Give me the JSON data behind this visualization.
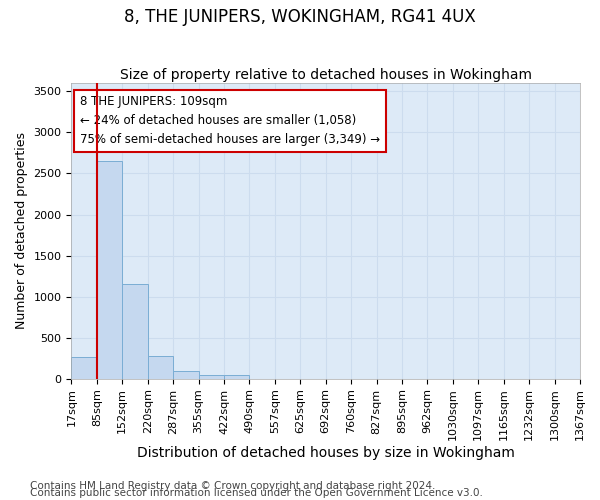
{
  "title": "8, THE JUNIPERS, WOKINGHAM, RG41 4UX",
  "subtitle": "Size of property relative to detached houses in Wokingham",
  "xlabel": "Distribution of detached houses by size in Wokingham",
  "ylabel": "Number of detached properties",
  "footnote1": "Contains HM Land Registry data © Crown copyright and database right 2024.",
  "footnote2": "Contains public sector information licensed under the Open Government Licence v3.0.",
  "bin_labels": [
    "17sqm",
    "85sqm",
    "152sqm",
    "220sqm",
    "287sqm",
    "355sqm",
    "422sqm",
    "490sqm",
    "557sqm",
    "625sqm",
    "692sqm",
    "760sqm",
    "827sqm",
    "895sqm",
    "962sqm",
    "1030sqm",
    "1097sqm",
    "1165sqm",
    "1232sqm",
    "1300sqm",
    "1367sqm"
  ],
  "bar_heights": [
    270,
    2650,
    1150,
    280,
    90,
    50,
    50,
    0,
    0,
    0,
    0,
    0,
    0,
    0,
    0,
    0,
    0,
    0,
    0,
    0
  ],
  "bar_color": "#c5d8ef",
  "bar_edge_color": "#7aadd4",
  "grid_color": "#ccdcee",
  "bg_color": "#ddeaf7",
  "property_line_x": 1.0,
  "annotation_title": "8 THE JUNIPERS: 109sqm",
  "annotation_line1": "← 24% of detached houses are smaller (1,058)",
  "annotation_line2": "75% of semi-detached houses are larger (3,349) →",
  "annotation_box_color": "#cc0000",
  "ylim": [
    0,
    3600
  ],
  "yticks": [
    0,
    500,
    1000,
    1500,
    2000,
    2500,
    3000,
    3500
  ],
  "title_fontsize": 12,
  "subtitle_fontsize": 10,
  "xlabel_fontsize": 10,
  "ylabel_fontsize": 9,
  "tick_fontsize": 8,
  "annot_fontsize": 8.5,
  "footnote_fontsize": 7.5
}
